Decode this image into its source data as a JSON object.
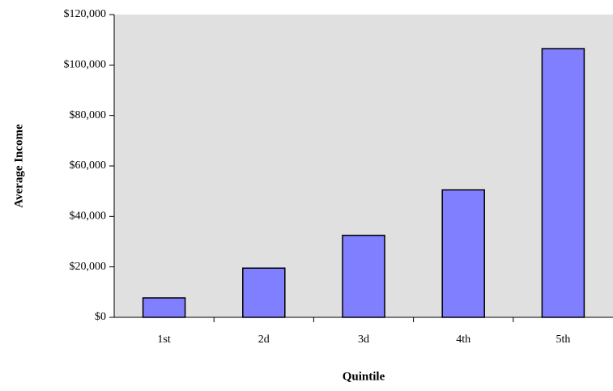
{
  "chart_data": {
    "type": "bar",
    "x_label": "Quintile",
    "y_label": "Average Income",
    "categories": [
      "1st",
      "2d",
      "3d",
      "4th",
      "5th"
    ],
    "values": [
      7700,
      19500,
      32500,
      50500,
      106500
    ],
    "color": "#7f7fff",
    "ylim": [
      0,
      120000
    ],
    "yticks": [
      {
        "value": 0,
        "label": "$0"
      },
      {
        "value": 20000,
        "label": "$20,000"
      },
      {
        "value": 40000,
        "label": "$40,000"
      },
      {
        "value": 60000,
        "label": "$60,000"
      },
      {
        "value": 80000,
        "label": "$80,000"
      },
      {
        "value": 100000,
        "label": "$100,000"
      },
      {
        "value": 120000,
        "label": "$120,000"
      }
    ],
    "grid": false
  }
}
